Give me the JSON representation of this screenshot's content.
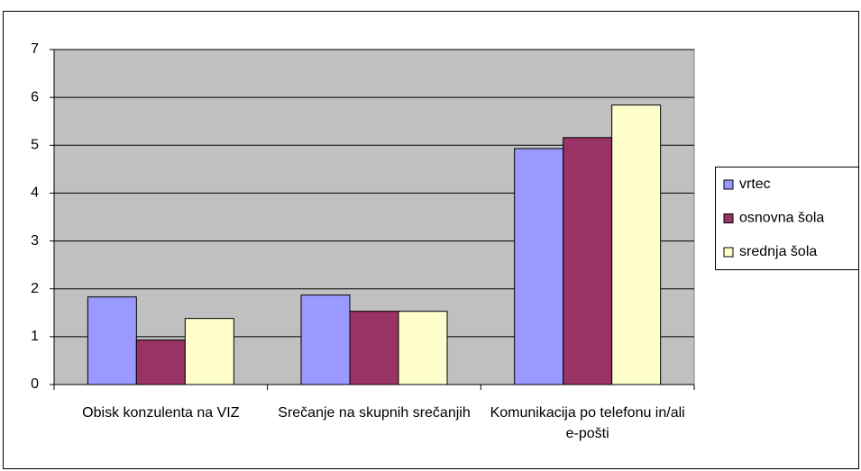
{
  "chart_data": {
    "type": "bar",
    "categories": [
      "Obisk konzulenta na VIZ",
      "Srečanje na skupnih srečanjih",
      "Komunikacija po telefonu in/ali e-pošti"
    ],
    "series": [
      {
        "name": "vrtec",
        "color": "#9999ff",
        "values": [
          1.83,
          1.87,
          4.93
        ]
      },
      {
        "name": "osnovna šola",
        "color": "#993366",
        "values": [
          0.93,
          1.53,
          5.16
        ]
      },
      {
        "name": "srednja šola",
        "color": "#ffffcc",
        "values": [
          1.38,
          1.53,
          5.84
        ]
      }
    ],
    "ylim": [
      0,
      7
    ],
    "yticks": [
      0,
      1,
      2,
      3,
      4,
      5,
      6,
      7
    ],
    "grid": true,
    "legend": "right"
  }
}
